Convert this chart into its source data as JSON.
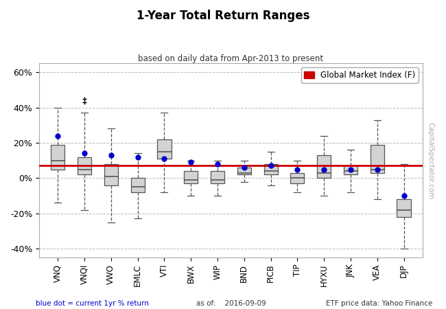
{
  "title": "1-Year Total Return Ranges",
  "subtitle": "based on daily data from Apr-2013 to present",
  "legend_label": "Global Market Index (F)",
  "categories": [
    "VNQ",
    "VNQI",
    "VWO",
    "EMLC",
    "VTI",
    "BWX",
    "WIP",
    "BND",
    "PICB",
    "TIP",
    "HYXU",
    "JNK",
    "VEA",
    "DJP"
  ],
  "box_data": [
    {
      "whislo": -14,
      "q1": 5,
      "med": 10,
      "q3": 19,
      "whishi": 40,
      "fliers_high": [],
      "fliers_low": [],
      "dot": 24
    },
    {
      "whislo": -18,
      "q1": 2,
      "med": 5,
      "q3": 12,
      "whishi": 37,
      "fliers_high": [
        43,
        45
      ],
      "fliers_low": [],
      "dot": 14
    },
    {
      "whislo": -25,
      "q1": -4,
      "med": 1,
      "q3": 8,
      "whishi": 28,
      "fliers_high": [],
      "fliers_low": [],
      "dot": 13
    },
    {
      "whislo": -23,
      "q1": -8,
      "med": -5,
      "q3": 0,
      "whishi": 14,
      "fliers_high": [],
      "fliers_low": [],
      "dot": 12
    },
    {
      "whislo": -8,
      "q1": 11,
      "med": 15,
      "q3": 22,
      "whishi": 37,
      "fliers_high": [],
      "fliers_low": [],
      "dot": 11
    },
    {
      "whislo": -10,
      "q1": -3,
      "med": -1,
      "q3": 4,
      "whishi": 10,
      "fliers_high": [],
      "fliers_low": [],
      "dot": 9
    },
    {
      "whislo": -10,
      "q1": -3,
      "med": -1,
      "q3": 4,
      "whishi": 10,
      "fliers_high": [],
      "fliers_low": [],
      "dot": 8
    },
    {
      "whislo": -2,
      "q1": 2,
      "med": 3,
      "q3": 6,
      "whishi": 10,
      "fliers_high": [],
      "fliers_low": [],
      "dot": 6
    },
    {
      "whislo": -4,
      "q1": 2,
      "med": 4,
      "q3": 8,
      "whishi": 15,
      "fliers_high": [],
      "fliers_low": [],
      "dot": 7
    },
    {
      "whislo": -8,
      "q1": -3,
      "med": 0,
      "q3": 3,
      "whishi": 10,
      "fliers_high": [],
      "fliers_low": [],
      "dot": 5
    },
    {
      "whislo": -10,
      "q1": 0,
      "med": 3,
      "q3": 13,
      "whishi": 24,
      "fliers_high": [],
      "fliers_low": [],
      "dot": 5
    },
    {
      "whislo": -8,
      "q1": 2,
      "med": 4,
      "q3": 7,
      "whishi": 16,
      "fliers_high": [],
      "fliers_low": [],
      "dot": 5
    },
    {
      "whislo": -12,
      "q1": 3,
      "med": 5,
      "q3": 19,
      "whishi": 33,
      "fliers_high": [],
      "fliers_low": [],
      "dot": 5
    },
    {
      "whislo": -40,
      "q1": -22,
      "med": -18,
      "q3": -12,
      "whishi": 8,
      "fliers_high": [],
      "fliers_low": [],
      "dot": -10
    }
  ],
  "global_market_line": 7,
  "ylim": [
    -45,
    65
  ],
  "yticks": [
    -40,
    -20,
    0,
    20,
    40,
    60
  ],
  "box_color": "#d3d3d3",
  "box_edge_color": "#555555",
  "whisker_color": "#555555",
  "median_color": "#555555",
  "dot_color": "#0000cc",
  "line_color": "#cc0000",
  "background_color": "#ffffff",
  "grid_color": "#bbbbbb",
  "footer_left": "blue dot = current 1yr % return",
  "footer_mid": "as of:    2016-09-09",
  "footer_right": "ETF price data: Yahoo Finance",
  "watermark": "CapitalSpectator.com"
}
